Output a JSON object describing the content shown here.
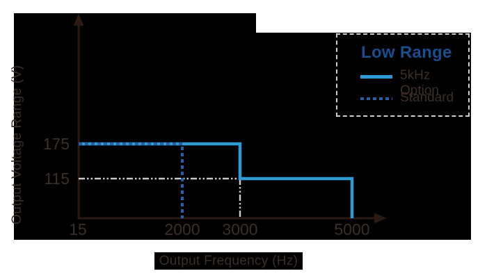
{
  "colors": {
    "background": "#ffffff",
    "plot_background": "#000000",
    "axis": "#2a1a12",
    "text_dark": "#3b2f2c",
    "legend_title_blue": "#1b4d8c",
    "solid_line_blue": "#2e9bd6",
    "dashed_line_blue": "#2b5fa4",
    "guide_gray": "#c9c9c9",
    "legend_border": "#cfcfcf"
  },
  "y_axis": {
    "label": "Output Voltage Range (V)",
    "ticks": [
      "175",
      "115"
    ]
  },
  "x_axis": {
    "label": "Output Frequency (Hz)",
    "ticks": [
      "15",
      "2000",
      "3000",
      "5000"
    ]
  },
  "legend": {
    "title": "Low Range",
    "items": [
      {
        "label": "5kHz Option",
        "style": "solid"
      },
      {
        "label": "Standard",
        "style": "dashed"
      }
    ]
  },
  "chart_data": {
    "type": "line",
    "title": "",
    "xlabel": "Output Frequency (Hz)",
    "ylabel": "Output Voltage Range (V)",
    "x_ticks": [
      15,
      2000,
      3000,
      5000
    ],
    "y_ticks": [
      115,
      175
    ],
    "xlim": [
      15,
      5000
    ],
    "ylim": [
      0,
      230
    ],
    "grid": false,
    "legend_position": "top-right",
    "legend_title": "Low Range",
    "series": [
      {
        "name": "5kHz Option",
        "style": "solid",
        "color": "#2e9bd6",
        "points": [
          [
            15,
            175
          ],
          [
            3000,
            175
          ],
          [
            3000,
            115
          ],
          [
            5000,
            115
          ],
          [
            5000,
            0
          ]
        ]
      },
      {
        "name": "Standard",
        "style": "dashed",
        "color": "#2b5fa4",
        "points": [
          [
            15,
            175
          ],
          [
            2000,
            175
          ],
          [
            2000,
            0
          ]
        ]
      }
    ],
    "guides": [
      {
        "name": "115V-level-guide",
        "style": "dash-dot",
        "color": "#c9c9c9",
        "points": [
          [
            15,
            115
          ],
          [
            5000,
            115
          ]
        ]
      },
      {
        "name": "3000Hz-drop-guide",
        "style": "dash-dot",
        "color": "#c9c9c9",
        "points": [
          [
            3000,
            115
          ],
          [
            3000,
            0
          ]
        ]
      }
    ]
  }
}
